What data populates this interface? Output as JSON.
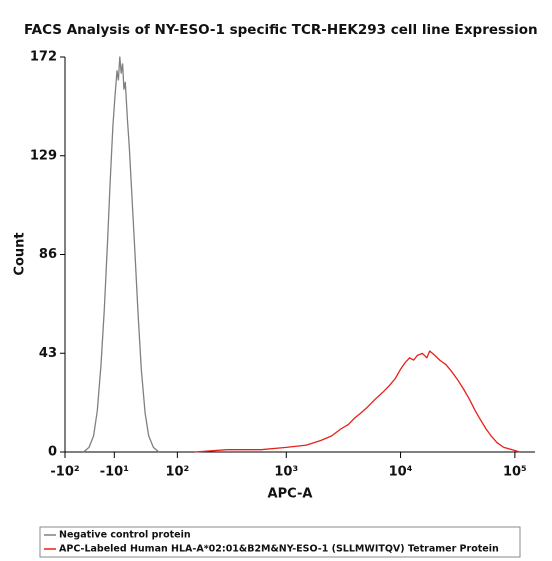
{
  "chart_data": {
    "type": "line",
    "title": "FACS Analysis of NY-ESO-1 specific TCR-HEK293 cell line Expression",
    "xlabel": "APC-A",
    "ylabel": "Count",
    "xscale": "biexponential",
    "xlim": [
      -100,
      150000
    ],
    "xticks": [
      {
        "value": -100,
        "label": "-10²"
      },
      {
        "value": -10,
        "label": "-10¹"
      },
      {
        "value": 100,
        "label": "10²"
      },
      {
        "value": 1000,
        "label": "10³"
      },
      {
        "value": 10000,
        "label": "10⁴"
      },
      {
        "value": 100000,
        "label": "10⁵"
      }
    ],
    "ylim": [
      0,
      172
    ],
    "yticks": [
      0,
      43,
      86,
      129,
      172
    ],
    "legend": "bottom",
    "series": [
      {
        "name": "Negative control protein",
        "color": "#808080",
        "x": [
          -60,
          -50,
          -42,
          -36,
          -30,
          -25,
          -20,
          -16,
          -12,
          -9,
          -6,
          -4,
          -2,
          0,
          2,
          4,
          6,
          9,
          12,
          16,
          20,
          25,
          30,
          36,
          42,
          50,
          60
        ],
        "values": [
          0,
          2,
          7,
          18,
          38,
          62,
          92,
          118,
          142,
          155,
          166,
          162,
          172,
          165,
          169,
          158,
          161,
          145,
          132,
          110,
          88,
          60,
          36,
          17,
          7,
          2,
          0
        ]
      },
      {
        "name": "APC-Labeled Human HLA-A*02:01&B2M&NY-ESO-1 (SLLMWITQV) Tetramer Protein",
        "color": "#e8201a",
        "x": [
          150,
          300,
          600,
          1000,
          1500,
          2000,
          2500,
          3000,
          3500,
          4000,
          4500,
          5000,
          6000,
          7000,
          8000,
          9000,
          10000,
          11000,
          12000,
          13000,
          14000,
          15500,
          17000,
          18000,
          20000,
          22000,
          25000,
          28000,
          32000,
          36000,
          40000,
          45000,
          50000,
          56000,
          62000,
          70000,
          80000,
          95000,
          110000
        ],
        "values": [
          0,
          1,
          1,
          2,
          3,
          5,
          7,
          10,
          12,
          15,
          17,
          19,
          23,
          26,
          29,
          32,
          36,
          39,
          41,
          40,
          42,
          43,
          41,
          44,
          42,
          40,
          38,
          35,
          31,
          27,
          23,
          18,
          14,
          10,
          7,
          4,
          2,
          1,
          0
        ]
      }
    ]
  }
}
